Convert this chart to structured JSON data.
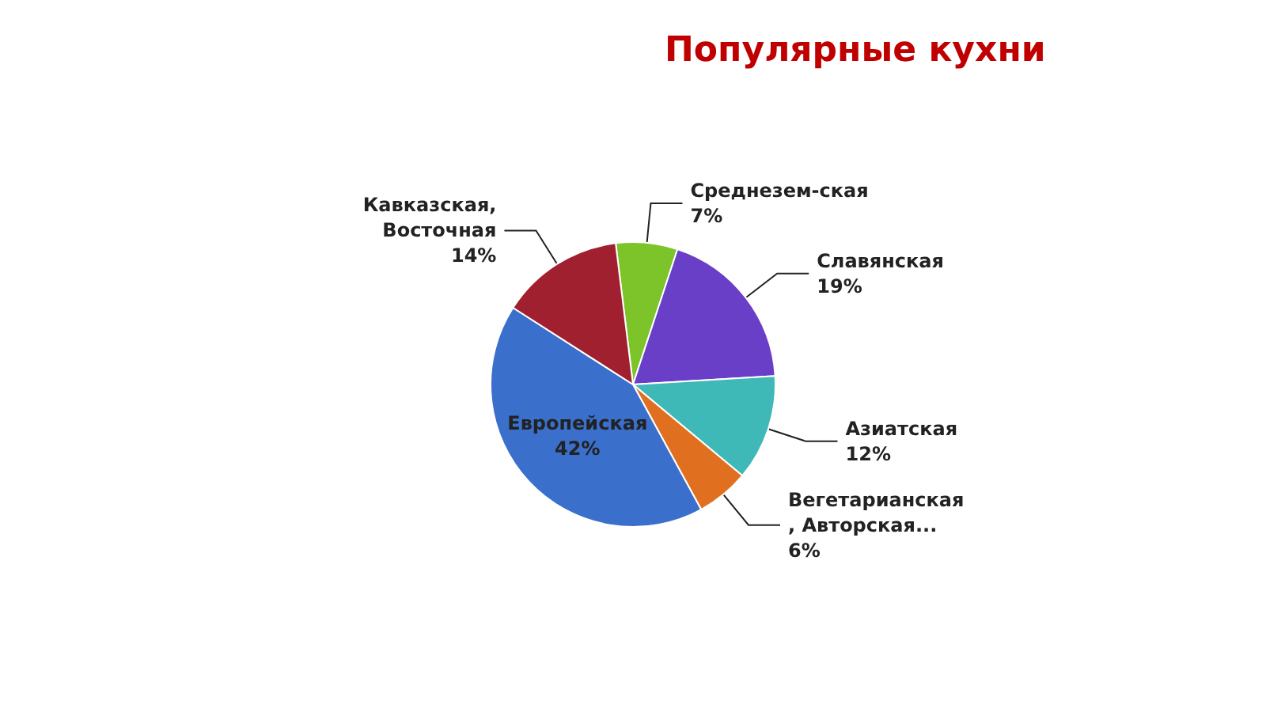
{
  "chart_data": {
    "type": "pie",
    "title": "Популярные кухни",
    "categories": [
      "Среднезем-ская",
      "Славянская",
      "Азиатская",
      "Вегетарианская\n, Авторская...",
      "Европейская",
      "Кавказская,\nВосточная"
    ],
    "values": [
      7,
      19,
      12,
      6,
      42,
      14
    ],
    "colors": [
      "#7cc42a",
      "#6a3fc8",
      "#3fb8b8",
      "#e07020",
      "#3a70cc",
      "#a02030"
    ],
    "value_labels": [
      "7%",
      "19%",
      "12%",
      "6%",
      "42%",
      "14%"
    ],
    "legend": false
  }
}
